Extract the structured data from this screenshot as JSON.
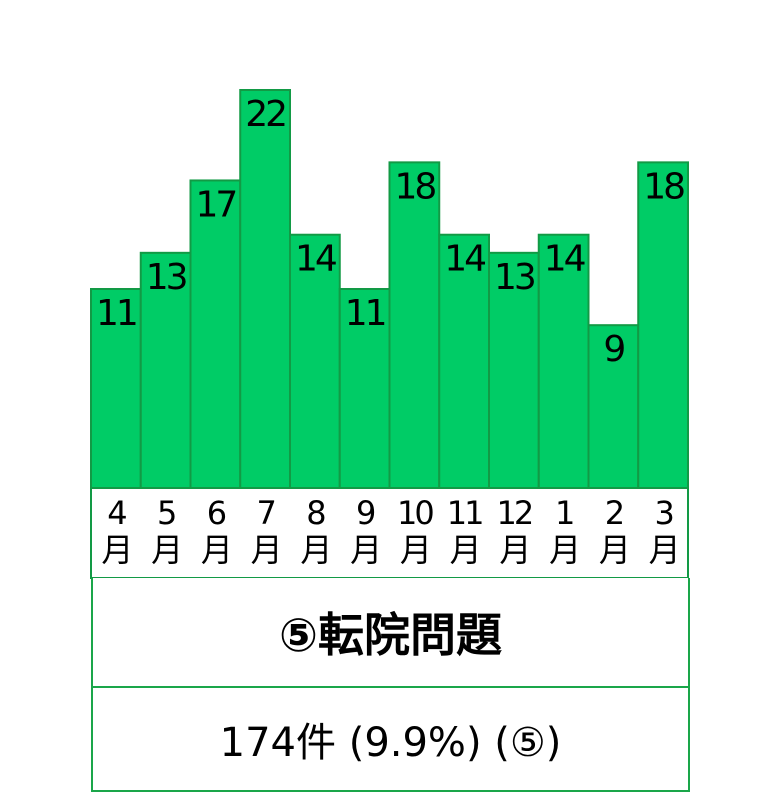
{
  "chart_data": {
    "type": "bar",
    "categories": [
      "4\n月",
      "5\n月",
      "6\n月",
      "7\n月",
      "8\n月",
      "9\n月",
      "10\n月",
      "11\n月",
      "12\n月",
      "1\n月",
      "2\n月",
      "3\n月"
    ],
    "values": [
      11,
      13,
      17,
      22,
      14,
      11,
      18,
      14,
      13,
      14,
      9,
      18
    ],
    "data_labels": [
      "11",
      "13",
      "17",
      "22",
      "14",
      "11",
      "18",
      "14",
      "13",
      "14",
      "9",
      "18"
    ],
    "ylim": [
      0,
      22
    ],
    "grid": false,
    "colors": {
      "fill": "#00cc66",
      "stroke": "#129a45"
    }
  },
  "title": "⑤転院問題",
  "summary": "174件 (9.9%) (⑤)"
}
